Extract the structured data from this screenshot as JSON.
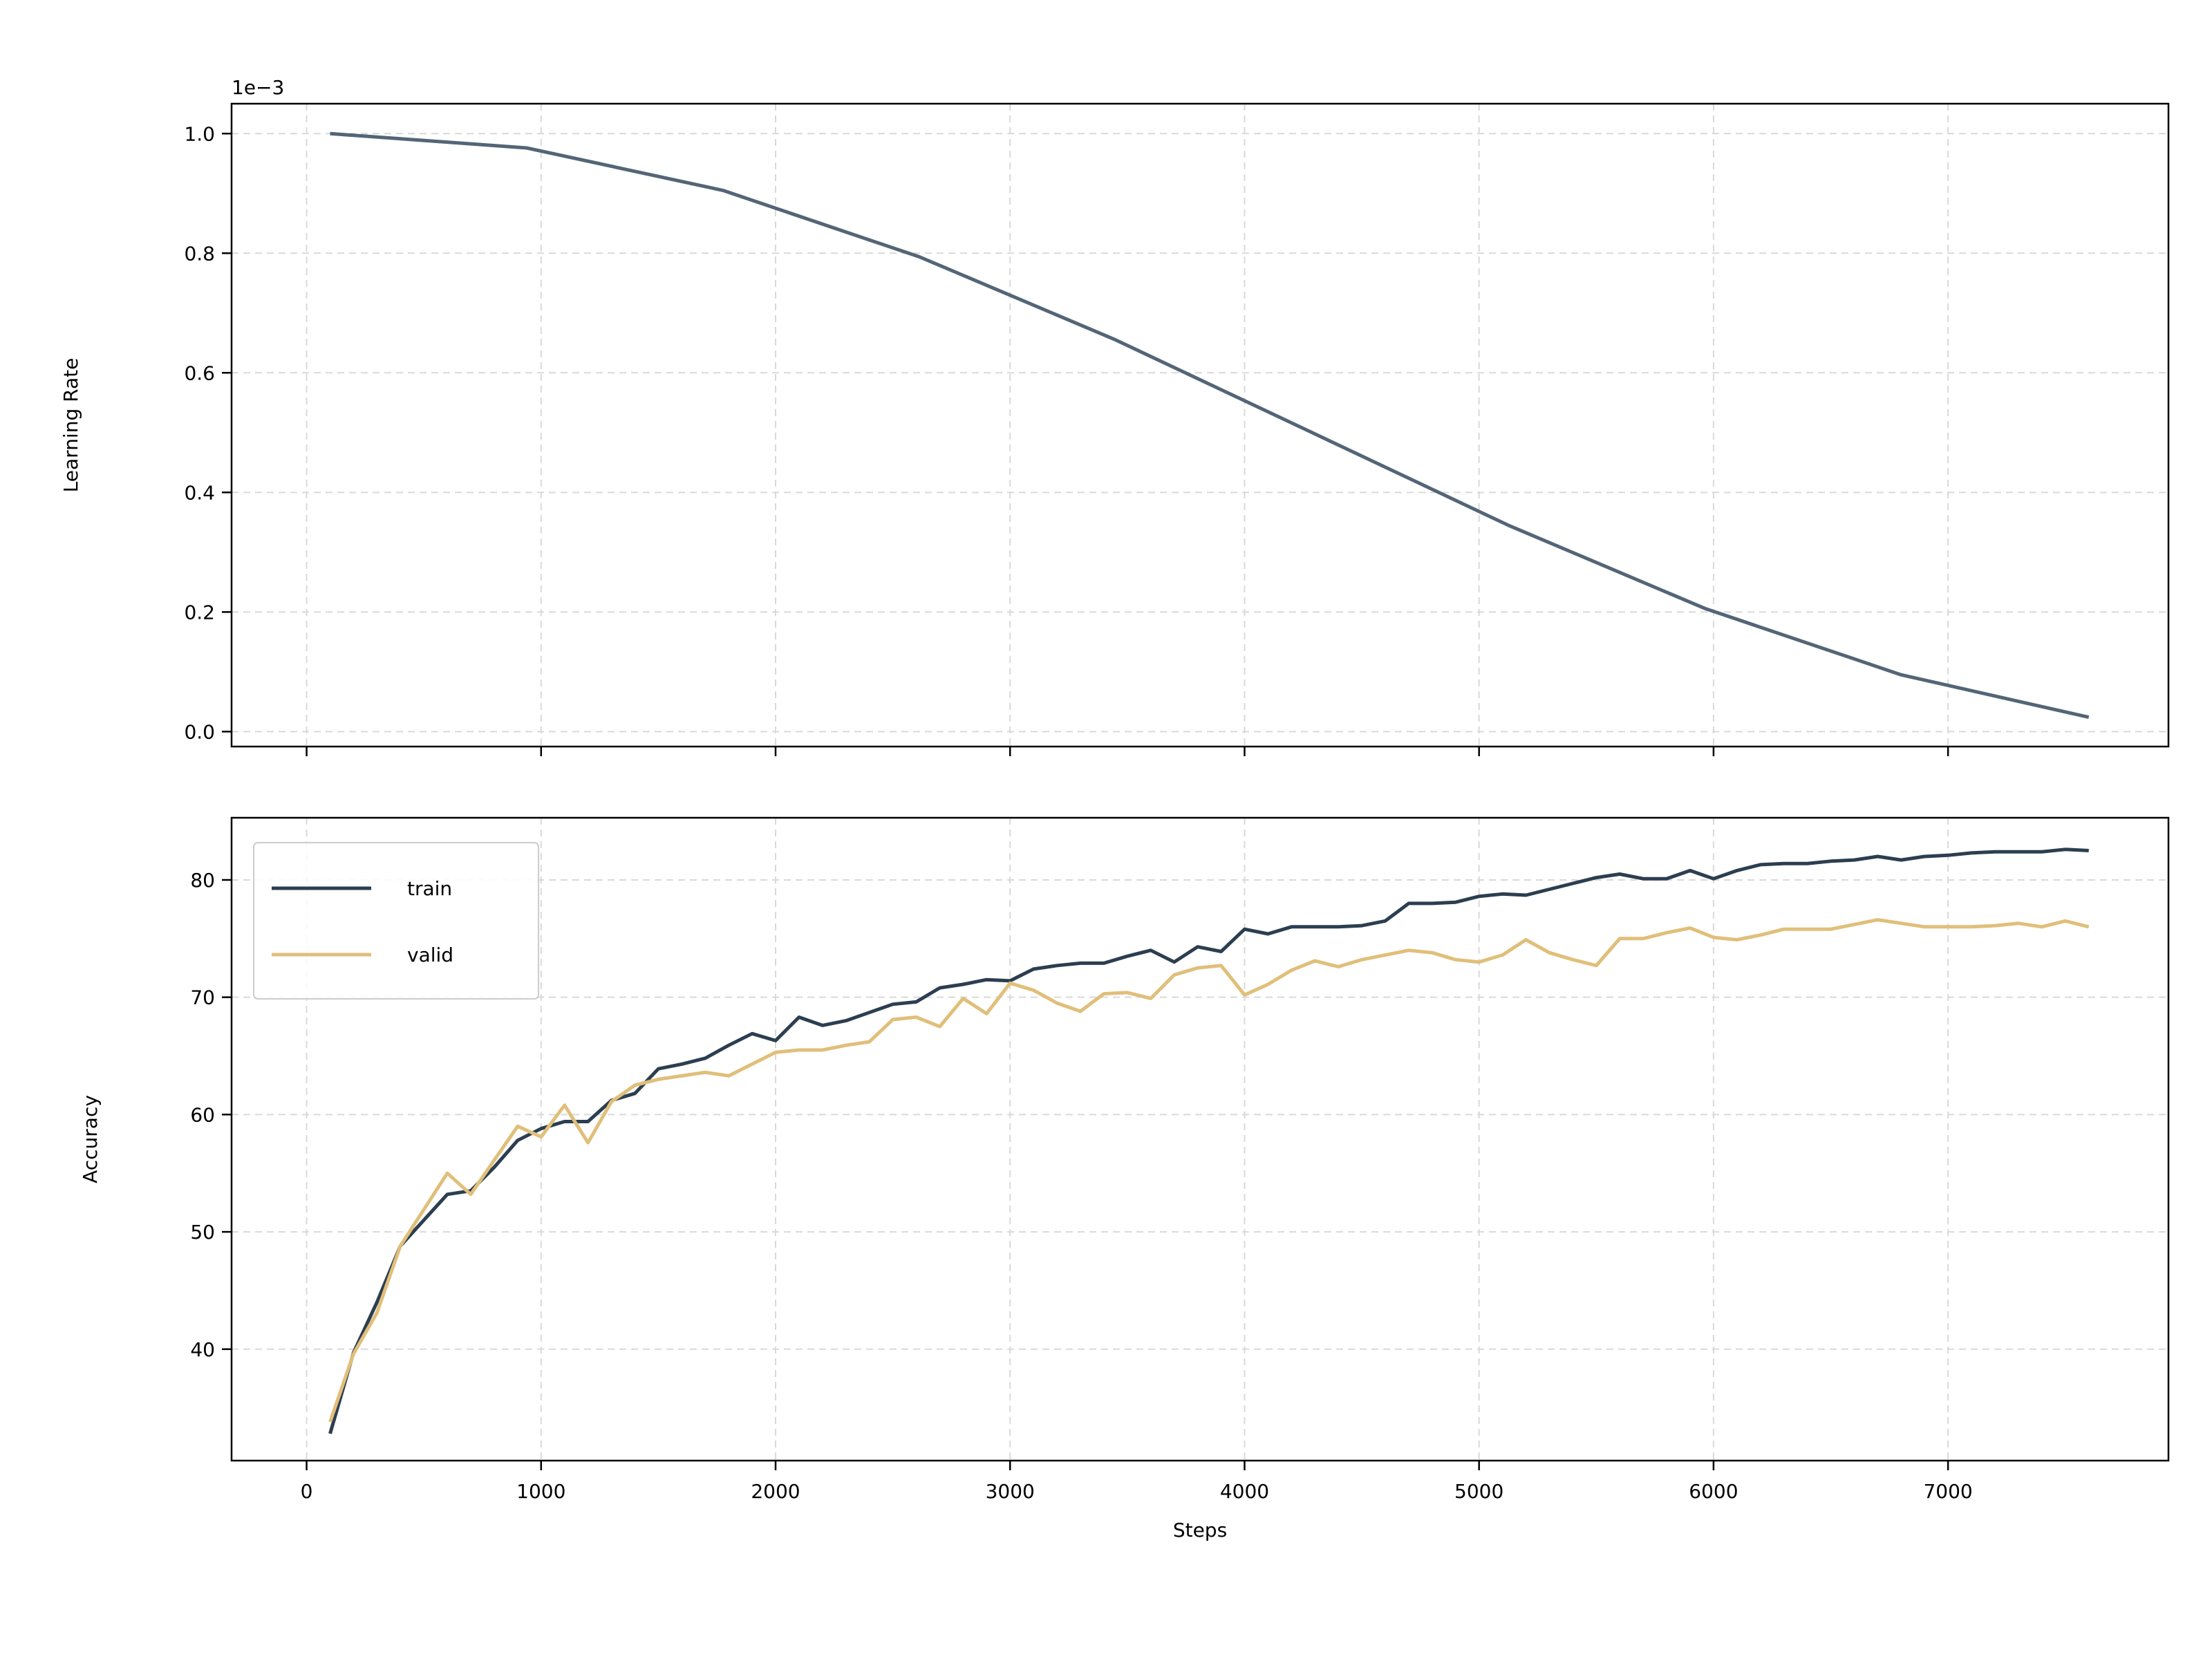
{
  "figure": {
    "offset_label": "1e−3",
    "x_axis_label": "Steps"
  },
  "colors": {
    "lr_line": "#536576",
    "train": "#2c3e50",
    "valid": "#e0bf7a",
    "grid": "#d9d9d9"
  },
  "chart_data": [
    {
      "type": "line",
      "ylabel": "Learning Rate",
      "y_scale_note": "values in units of 1e-3",
      "xlim": [
        -320,
        7940
      ],
      "ylim": [
        -0.025,
        1.05
      ],
      "yticks": [
        0.0,
        0.2,
        0.4,
        0.6,
        0.8,
        1.0
      ],
      "ytick_labels": [
        "0.0",
        "0.2",
        "0.4",
        "0.6",
        "0.8",
        "1.0"
      ],
      "xticks": [
        0,
        1000,
        2000,
        3000,
        4000,
        5000,
        6000,
        7000
      ],
      "show_xtick_labels": false,
      "grid": true,
      "series": [
        {
          "x": [
            100,
            938,
            1775,
            2613,
            3450,
            4288,
            5125,
            5963,
            6800,
            7600
          ],
          "y": [
            1.0,
            0.976,
            0.905,
            0.794,
            0.655,
            0.5,
            0.345,
            0.206,
            0.095,
            0.024
          ]
        }
      ]
    },
    {
      "type": "line",
      "ylabel": "Accuracy",
      "xlabel": "Steps",
      "xlim": [
        -320,
        7940
      ],
      "ylim": [
        30.5,
        85.3
      ],
      "yticks": [
        40,
        50,
        60,
        70,
        80
      ],
      "ytick_labels": [
        "40",
        "50",
        "60",
        "70",
        "80"
      ],
      "xticks": [
        0,
        1000,
        2000,
        3000,
        4000,
        5000,
        6000,
        7000
      ],
      "xtick_labels": [
        "0",
        "1000",
        "2000",
        "3000",
        "4000",
        "5000",
        "6000",
        "7000"
      ],
      "grid": true,
      "legend_position": "upper-left",
      "series": [
        {
          "name": "train",
          "x": [
            100,
            200,
            300,
            400,
            500,
            600,
            700,
            800,
            900,
            1000,
            1100,
            1200,
            1300,
            1400,
            1500,
            1600,
            1700,
            1800,
            1900,
            2000,
            2100,
            2200,
            2300,
            2400,
            2500,
            2600,
            2700,
            2800,
            2900,
            3000,
            3100,
            3200,
            3300,
            3400,
            3500,
            3600,
            3700,
            3800,
            3900,
            4000,
            4100,
            4200,
            4300,
            4400,
            4500,
            4600,
            4700,
            4800,
            4900,
            5000,
            5100,
            5200,
            5300,
            5400,
            5500,
            5600,
            5700,
            5800,
            5900,
            6000,
            6100,
            6200,
            6300,
            6400,
            6500,
            6600,
            6700,
            6800,
            6900,
            7000,
            7100,
            7200,
            7300,
            7400,
            7500,
            7600
          ],
          "y": [
            32.8,
            39.7,
            44.0,
            48.8,
            51.0,
            53.2,
            53.5,
            55.5,
            57.8,
            58.8,
            59.4,
            59.4,
            61.2,
            61.8,
            63.9,
            64.3,
            64.8,
            65.9,
            66.9,
            66.3,
            68.3,
            67.6,
            68.0,
            68.7,
            69.4,
            69.6,
            70.8,
            71.1,
            71.5,
            71.4,
            72.4,
            72.7,
            72.9,
            72.9,
            73.5,
            74.0,
            73.0,
            74.3,
            73.9,
            75.8,
            75.4,
            76.0,
            76.0,
            76.0,
            76.1,
            76.5,
            78.0,
            78.0,
            78.1,
            78.6,
            78.8,
            78.7,
            79.2,
            79.7,
            80.2,
            80.5,
            80.1,
            80.1,
            80.8,
            80.1,
            80.8,
            81.3,
            81.4,
            81.4,
            81.6,
            81.7,
            82.0,
            81.7,
            82.0,
            82.1,
            82.3,
            82.4,
            82.4,
            82.4,
            82.6,
            82.5
          ]
        },
        {
          "name": "valid",
          "x": [
            100,
            200,
            300,
            400,
            500,
            600,
            700,
            800,
            900,
            1000,
            1100,
            1200,
            1300,
            1400,
            1500,
            1600,
            1700,
            1800,
            1900,
            2000,
            2100,
            2200,
            2300,
            2400,
            2500,
            2600,
            2700,
            2800,
            2900,
            3000,
            3100,
            3200,
            3300,
            3400,
            3500,
            3600,
            3700,
            3800,
            3900,
            4000,
            4100,
            4200,
            4300,
            4400,
            4500,
            4600,
            4700,
            4800,
            4900,
            5000,
            5100,
            5200,
            5300,
            5400,
            5500,
            5600,
            5700,
            5800,
            5900,
            6000,
            6100,
            6200,
            6300,
            6400,
            6500,
            6600,
            6700,
            6800,
            6900,
            7000,
            7100,
            7200,
            7300,
            7400,
            7500,
            7600
          ],
          "y": [
            33.8,
            39.6,
            43.1,
            48.8,
            51.9,
            55.0,
            53.2,
            56.1,
            59.0,
            58.1,
            60.8,
            57.6,
            61.1,
            62.5,
            63.0,
            63.3,
            63.6,
            63.3,
            64.3,
            65.3,
            65.5,
            65.5,
            65.9,
            66.2,
            68.1,
            68.3,
            67.5,
            69.9,
            68.6,
            71.2,
            70.6,
            69.5,
            68.8,
            70.3,
            70.4,
            69.9,
            71.9,
            72.5,
            72.7,
            70.2,
            71.1,
            72.3,
            73.1,
            72.6,
            73.2,
            73.6,
            74.0,
            73.8,
            73.2,
            73.0,
            73.6,
            74.9,
            73.8,
            73.2,
            72.7,
            75.0,
            75.0,
            75.5,
            75.9,
            75.1,
            74.9,
            75.3,
            75.8,
            75.8,
            75.8,
            76.2,
            76.6,
            76.3,
            76.0,
            76.0,
            76.0,
            76.1,
            76.3,
            76.0,
            76.5,
            76.0
          ]
        }
      ]
    }
  ]
}
